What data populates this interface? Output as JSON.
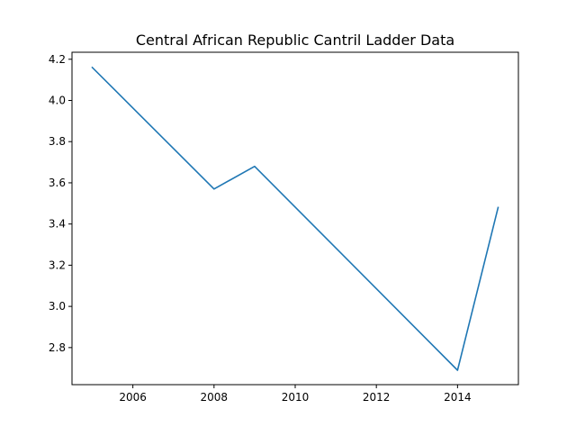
{
  "chart_data": {
    "type": "line",
    "title": "Central African Republic Cantril Ladder Data",
    "xlabel": "",
    "ylabel": "",
    "x": [
      2005,
      2008,
      2009,
      2014,
      2015
    ],
    "series": [
      {
        "values": [
          4.16,
          3.57,
          3.68,
          2.69,
          3.48
        ],
        "color": "#1f77b4"
      }
    ],
    "xlim": [
      2004.5,
      2015.5
    ],
    "ylim": [
      2.62,
      4.234
    ],
    "xticks": [
      2006,
      2008,
      2010,
      2012,
      2014
    ],
    "yticks": [
      2.8,
      3.0,
      3.2,
      3.4,
      3.6,
      3.8,
      4.0,
      4.2
    ],
    "ytick_labels": [
      "2.8",
      "3.0",
      "3.2",
      "3.4",
      "3.6",
      "3.8",
      "4.0",
      "4.2"
    ],
    "grid": false,
    "legend": "none"
  }
}
